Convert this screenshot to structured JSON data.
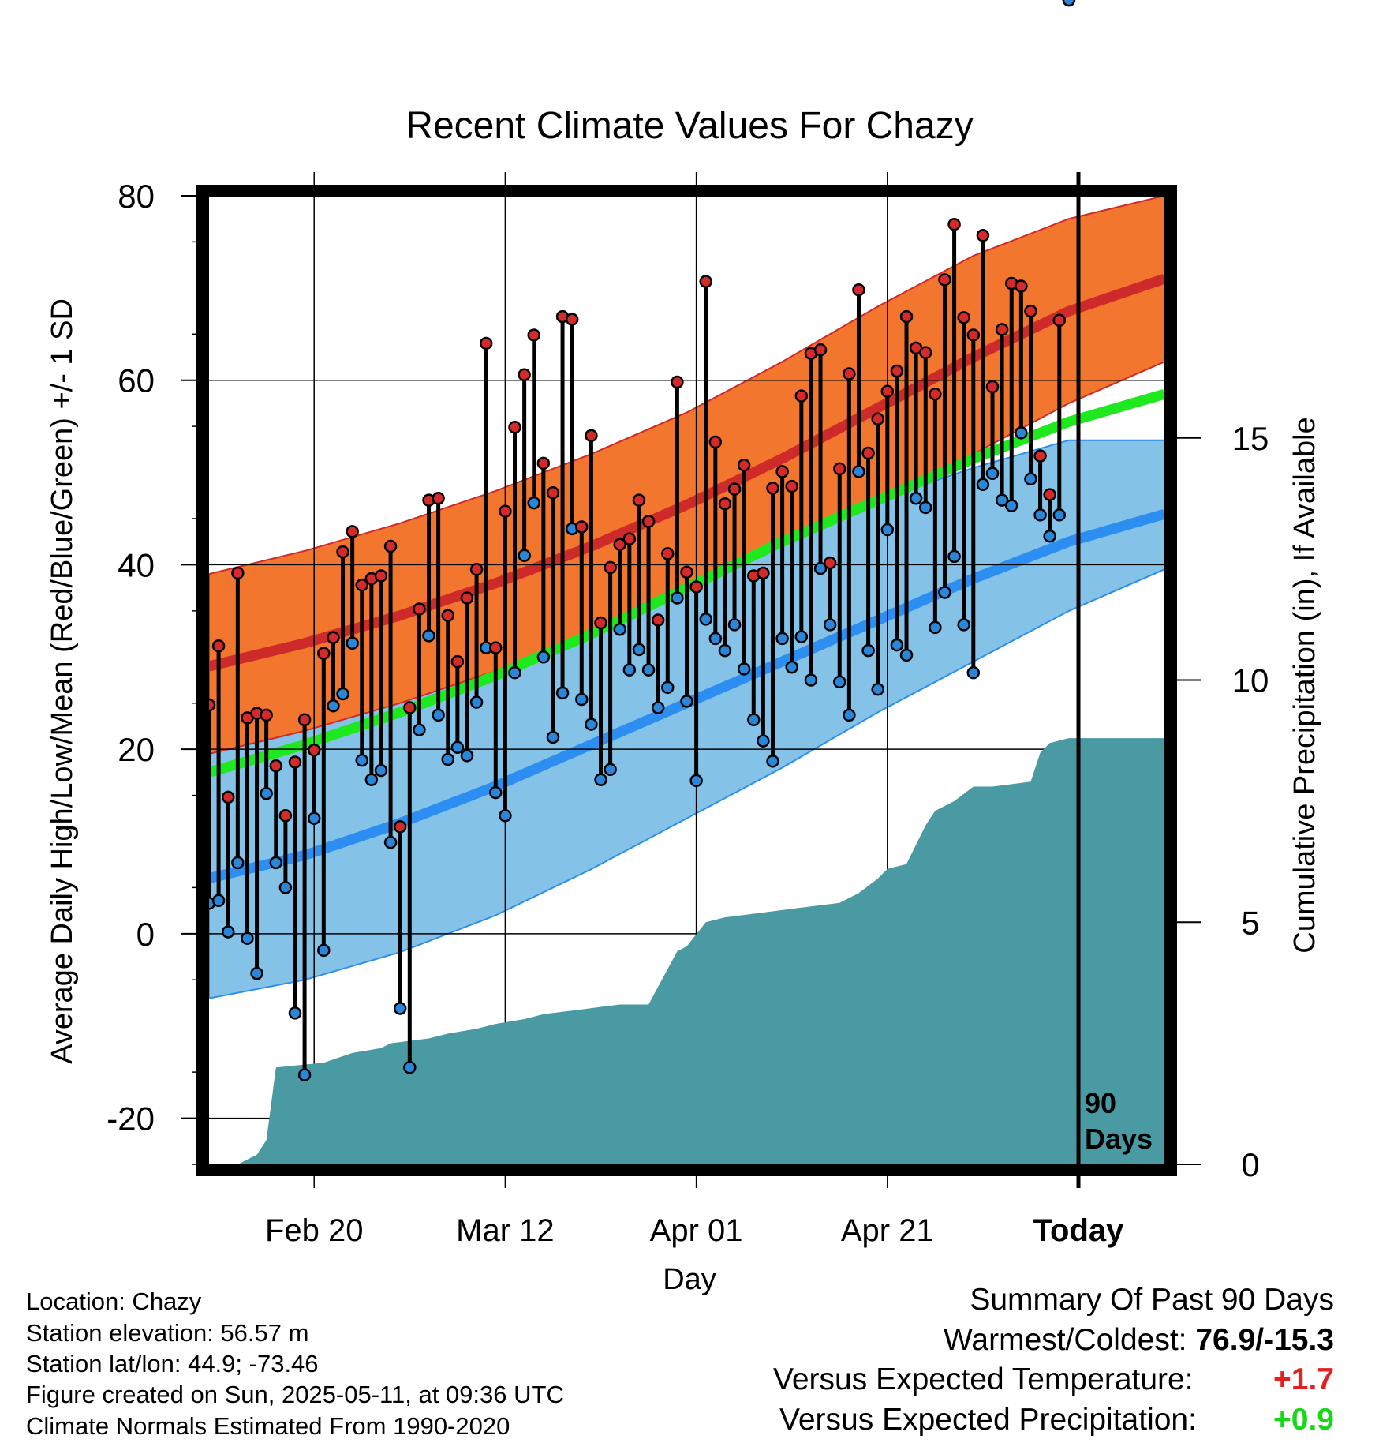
{
  "chart_data": {
    "type": "line",
    "title": "Recent Climate Values For Chazy",
    "xlabel": "Day",
    "ylabel": "Average Daily High/Low/Mean (Red/Blue/Green) +/- 1 SD",
    "y2label": "Cumulative Precipitation (in), If Available",
    "x_ticks": [
      {
        "day": 11,
        "label": "Feb 20"
      },
      {
        "day": 31,
        "label": "Mar 12"
      },
      {
        "day": 51,
        "label": "Apr 01"
      },
      {
        "day": 71,
        "label": "Apr 21"
      },
      {
        "day": 91,
        "label": "Today"
      }
    ],
    "xlim": [
      0,
      100
    ],
    "ylim": [
      -25,
      80
    ],
    "y_ticks": [
      -20,
      0,
      20,
      40,
      60,
      80
    ],
    "y2lim": [
      0,
      20
    ],
    "y2_ticks": [
      0,
      5,
      10,
      15
    ],
    "today_label": "90 Days",
    "grid": true,
    "colors": {
      "high_band": "#f2762e",
      "high_mean": "#cf2a2a",
      "low_band": "#84c2e8",
      "low_mean": "#2b8ef0",
      "mean_line": "#1ee81e",
      "precip": "#4a9aa3",
      "high_dot": "#d52a2a",
      "low_dot": "#2a86d8"
    },
    "normals": {
      "day": [
        0,
        10,
        20,
        30,
        40,
        50,
        60,
        70,
        80,
        90,
        100
      ],
      "high_mean": [
        29,
        31.5,
        34.5,
        38,
        42,
        46.5,
        51.5,
        57,
        62.5,
        67.5,
        71
      ],
      "high_upper": [
        39,
        41.5,
        44.5,
        48,
        52,
        56.5,
        62,
        68,
        73.5,
        77.5,
        80
      ],
      "high_lower": [
        19.5,
        22,
        25,
        28.5,
        32.5,
        37,
        42,
        47,
        52,
        57.5,
        62
      ],
      "mean": [
        17.5,
        20.5,
        24,
        28,
        32.5,
        37.5,
        42.5,
        47,
        51.5,
        55.5,
        58.5
      ],
      "low_mean": [
        6,
        8.5,
        12,
        16,
        20.5,
        25,
        29.5,
        34,
        38.5,
        42.5,
        45.5
      ],
      "low_upper": [
        19.5,
        22,
        25.5,
        29.5,
        34,
        38.5,
        43,
        47,
        50.5,
        53.5,
        53.5
      ],
      "low_lower": [
        -7,
        -5,
        -2,
        2,
        7,
        12.5,
        18,
        24,
        29.5,
        35,
        39.5
      ]
    },
    "observations": {
      "day": [
        0,
        1,
        2,
        3,
        4,
        5,
        6,
        7,
        8,
        9,
        10,
        11,
        12,
        13,
        14,
        15,
        16,
        17,
        18,
        19,
        20,
        21,
        22,
        23,
        24,
        25,
        26,
        27,
        28,
        29,
        30,
        31,
        32,
        33,
        34,
        35,
        36,
        37,
        38,
        39,
        40,
        41,
        42,
        43,
        44,
        45,
        46,
        47,
        48,
        49,
        50,
        51,
        52,
        53,
        54,
        55,
        56,
        57,
        58,
        59,
        60,
        61,
        62,
        63,
        64,
        65,
        66,
        67,
        68,
        69,
        70,
        71,
        72,
        73,
        74,
        75,
        76,
        77,
        78,
        79,
        80,
        81,
        82,
        83,
        84,
        85,
        86,
        87,
        88,
        89,
        90
      ],
      "high": [
        24.8,
        31.2,
        14.8,
        39.1,
        23.4,
        23.9,
        23.7,
        18.2,
        12.8,
        18.6,
        23.2,
        19.9,
        30.4,
        32.1,
        41.4,
        43.6,
        37.8,
        38.5,
        38.8,
        42.0,
        11.6,
        24.5,
        35.2,
        47.0,
        47.2,
        34.5,
        29.5,
        36.4,
        39.5,
        64.0,
        31.0,
        45.8,
        54.9,
        60.6,
        64.9,
        51.0,
        47.8,
        66.9,
        66.6,
        44.1,
        54.0,
        33.7,
        39.7,
        42.2,
        42.8,
        47.0,
        44.7,
        34.0,
        41.2,
        59.8,
        39.2,
        37.6,
        70.7,
        53.3,
        46.6,
        48.2,
        50.8,
        38.8,
        39.1,
        48.3,
        50.1,
        48.5,
        58.3,
        62.9,
        63.3,
        40.2,
        50.4,
        60.7,
        69.8,
        52.1,
        55.8,
        58.8,
        61.0,
        66.9,
        63.5,
        63.0,
        58.5,
        70.9,
        76.9,
        66.8,
        64.9,
        75.7,
        59.3,
        65.5,
        70.5,
        70.2,
        67.5,
        51.8,
        47.6,
        66.5
      ],
      "low": [
        3.3,
        3.6,
        0.2,
        7.7,
        -0.5,
        -4.3,
        15.2,
        7.7,
        5.0,
        -8.6,
        -15.3,
        12.5,
        -1.8,
        24.7,
        26.0,
        31.5,
        18.8,
        16.7,
        17.7,
        9.9,
        -8.1,
        -14.5,
        22.1,
        32.3,
        23.7,
        18.9,
        20.2,
        19.3,
        25.1,
        31.0,
        15.3,
        12.8,
        28.3,
        41.0,
        46.7,
        30.0,
        21.3,
        26.1,
        43.9,
        25.4,
        22.7,
        16.7,
        17.8,
        33.0,
        28.6,
        30.8,
        28.6,
        24.5,
        26.7,
        36.4,
        25.2,
        16.6,
        34.1,
        32.0,
        30.7,
        33.5,
        28.7,
        23.2,
        20.9,
        18.7,
        32.0,
        28.9,
        32.2,
        27.5,
        39.6,
        33.5,
        27.3,
        23.7,
        50.1,
        30.7,
        26.5,
        43.8,
        31.3,
        30.2,
        47.2,
        46.2,
        33.2,
        37.0,
        40.9,
        33.5,
        28.3,
        48.7,
        49.9,
        47.0,
        46.4,
        54.3,
        49.3,
        45.4,
        43.1,
        45.4
      ]
    },
    "precip_cumulative": {
      "day": [
        0,
        3,
        5,
        6,
        7,
        12,
        15,
        18,
        19,
        23,
        25,
        28,
        30,
        33,
        35,
        39,
        43,
        46,
        49,
        50,
        52,
        54,
        58,
        62,
        66,
        68,
        70,
        71,
        73,
        75,
        76,
        78,
        80,
        82,
        86,
        87,
        88,
        90,
        91,
        100
      ],
      "values": [
        0,
        0,
        0.2,
        0.5,
        2.0,
        2.1,
        2.3,
        2.4,
        2.5,
        2.6,
        2.7,
        2.8,
        2.9,
        3.0,
        3.1,
        3.2,
        3.3,
        3.3,
        4.4,
        4.5,
        5.0,
        5.1,
        5.2,
        5.3,
        5.4,
        5.6,
        5.9,
        6.1,
        6.2,
        7.0,
        7.3,
        7.5,
        7.8,
        7.8,
        7.9,
        8.5,
        8.7,
        8.8,
        8.8,
        8.8
      ]
    }
  },
  "station": {
    "location": "Location: Chazy",
    "elevation": "Station elevation: 56.57 m",
    "latlon": "Station lat/lon: 44.9; -73.46",
    "created": "Figure created on Sun, 2025-05-11, at 09:36 UTC",
    "normals": "Climate Normals Estimated From 1990-2020"
  },
  "summary": {
    "title": "Summary Of Past 90 Days",
    "warm_cold_label": "Warmest/Coldest:",
    "warm_cold_value": "76.9/-15.3",
    "temp_label": "Versus Expected Temperature:",
    "temp_value": "+1.7",
    "temp_color": "#e02222",
    "precip_label": "Versus Expected Precipitation:",
    "precip_value": "+0.9",
    "precip_color": "#16d816"
  }
}
